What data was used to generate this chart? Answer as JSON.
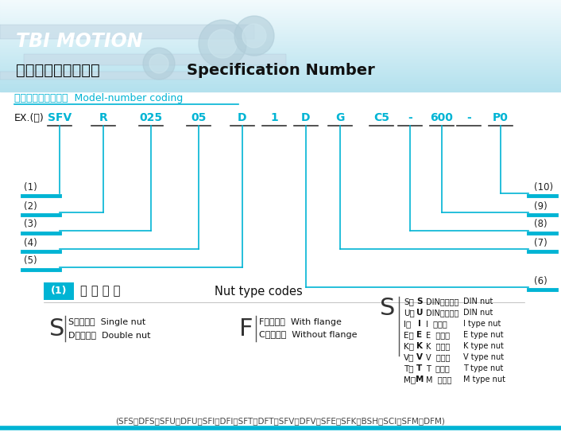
{
  "bg_color": "#ffffff",
  "cyan": "#00b4d4",
  "cyan_line": "#00b4d4",
  "cyan_thick": "#00b4d4",
  "header_bg": "#b8dce8",
  "title_chinese": "滚珠螺桿的公稱代號",
  "title_english": "Specification Number",
  "subtitle_chinese": "標準組合品編碼原則",
  "subtitle_english": "Model-number coding",
  "ex_label": "EX.(例)",
  "codes": [
    "SFV",
    "R",
    "025",
    "05",
    "D",
    "1",
    "D",
    "G",
    "C5",
    "-",
    "600",
    "-",
    "P0"
  ],
  "box1_label": "(1)",
  "box1_chinese": "螺 帽 型 號",
  "box1_english": "Nut type codes",
  "s_desc1": "S：單螺帽  Single nut",
  "s_desc2": "D：雙螺帽  Double nut",
  "f_desc1": "F：有法蘭  With flange",
  "f_desc2": "C：無法蘭  Without flange",
  "right_entries": [
    [
      "S",
      "DIN規格螺帽",
      "DIN nut"
    ],
    [
      "U",
      "DIN規格螺帽",
      "DIN nut"
    ],
    [
      "I",
      "I  型螺帽",
      "I type nut"
    ],
    [
      "E",
      "E  型螺帽",
      "E type nut"
    ],
    [
      "K",
      "K  型螺帽",
      "K type nut"
    ],
    [
      "V",
      "V  型螺帽",
      "V type nut"
    ],
    [
      "T",
      "T  型螺帽",
      "T type nut"
    ],
    [
      "M",
      "M  型螺帽",
      "M type nut"
    ]
  ],
  "footer_text": "(SFS、DFS、SFU、DFU、SFI、DFI、SFT、DFT、SFV、DFV、SFE、SFK、BSH、SCI、SFM、DFM)"
}
